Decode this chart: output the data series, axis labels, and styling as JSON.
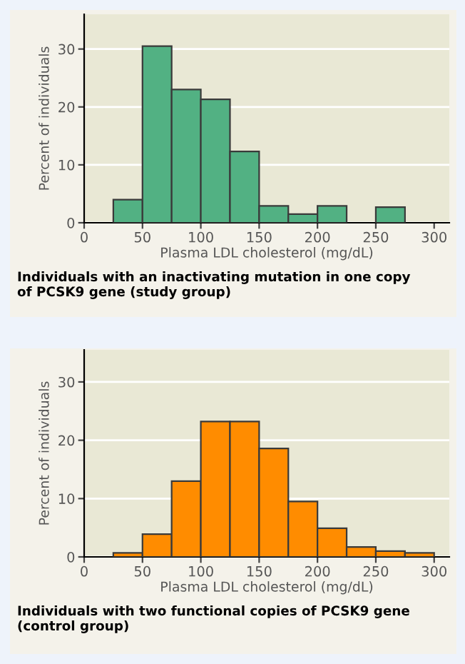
{
  "chart_data": [
    {
      "type": "histogram",
      "xlabel": "Plasma LDL cholesterol (mg/dL)",
      "ylabel": "Percent of individuals",
      "bins": [
        25,
        50,
        75,
        100,
        125,
        150,
        175,
        200,
        225,
        250,
        275
      ],
      "values": [
        4,
        30.5,
        23,
        21.3,
        12.3,
        2.9,
        1.5,
        2.9,
        0,
        2.7
      ],
      "color": "#52b183",
      "xlim": [
        0,
        313
      ],
      "ylim": [
        0,
        36
      ],
      "xticks": [
        0,
        50,
        100,
        150,
        200,
        250,
        300
      ],
      "yticks": [
        0,
        10,
        20,
        30
      ],
      "grid": "y",
      "annotations": [
        "Individuals with an inactivating mutation in one copy",
        "of PCSK9 gene (study group)"
      ]
    },
    {
      "type": "histogram",
      "xlabel": "Plasma LDL cholesterol (mg/dL)",
      "ylabel": "Percent of individuals",
      "bins": [
        25,
        50,
        75,
        100,
        125,
        150,
        175,
        200,
        225,
        250,
        275,
        300
      ],
      "values": [
        0.7,
        3.9,
        13,
        23.2,
        23.2,
        18.6,
        9.5,
        4.9,
        1.7,
        1.0,
        0.7
      ],
      "color": "#ff8c00",
      "xlim": [
        0,
        313
      ],
      "ylim": [
        0,
        35.5
      ],
      "xticks": [
        0,
        50,
        100,
        150,
        200,
        250,
        300
      ],
      "yticks": [
        0,
        10,
        20,
        30
      ],
      "grid": "y",
      "annotations": [
        "Individuals with two functional copies of PCSK9 gene",
        "(control group)"
      ]
    }
  ]
}
